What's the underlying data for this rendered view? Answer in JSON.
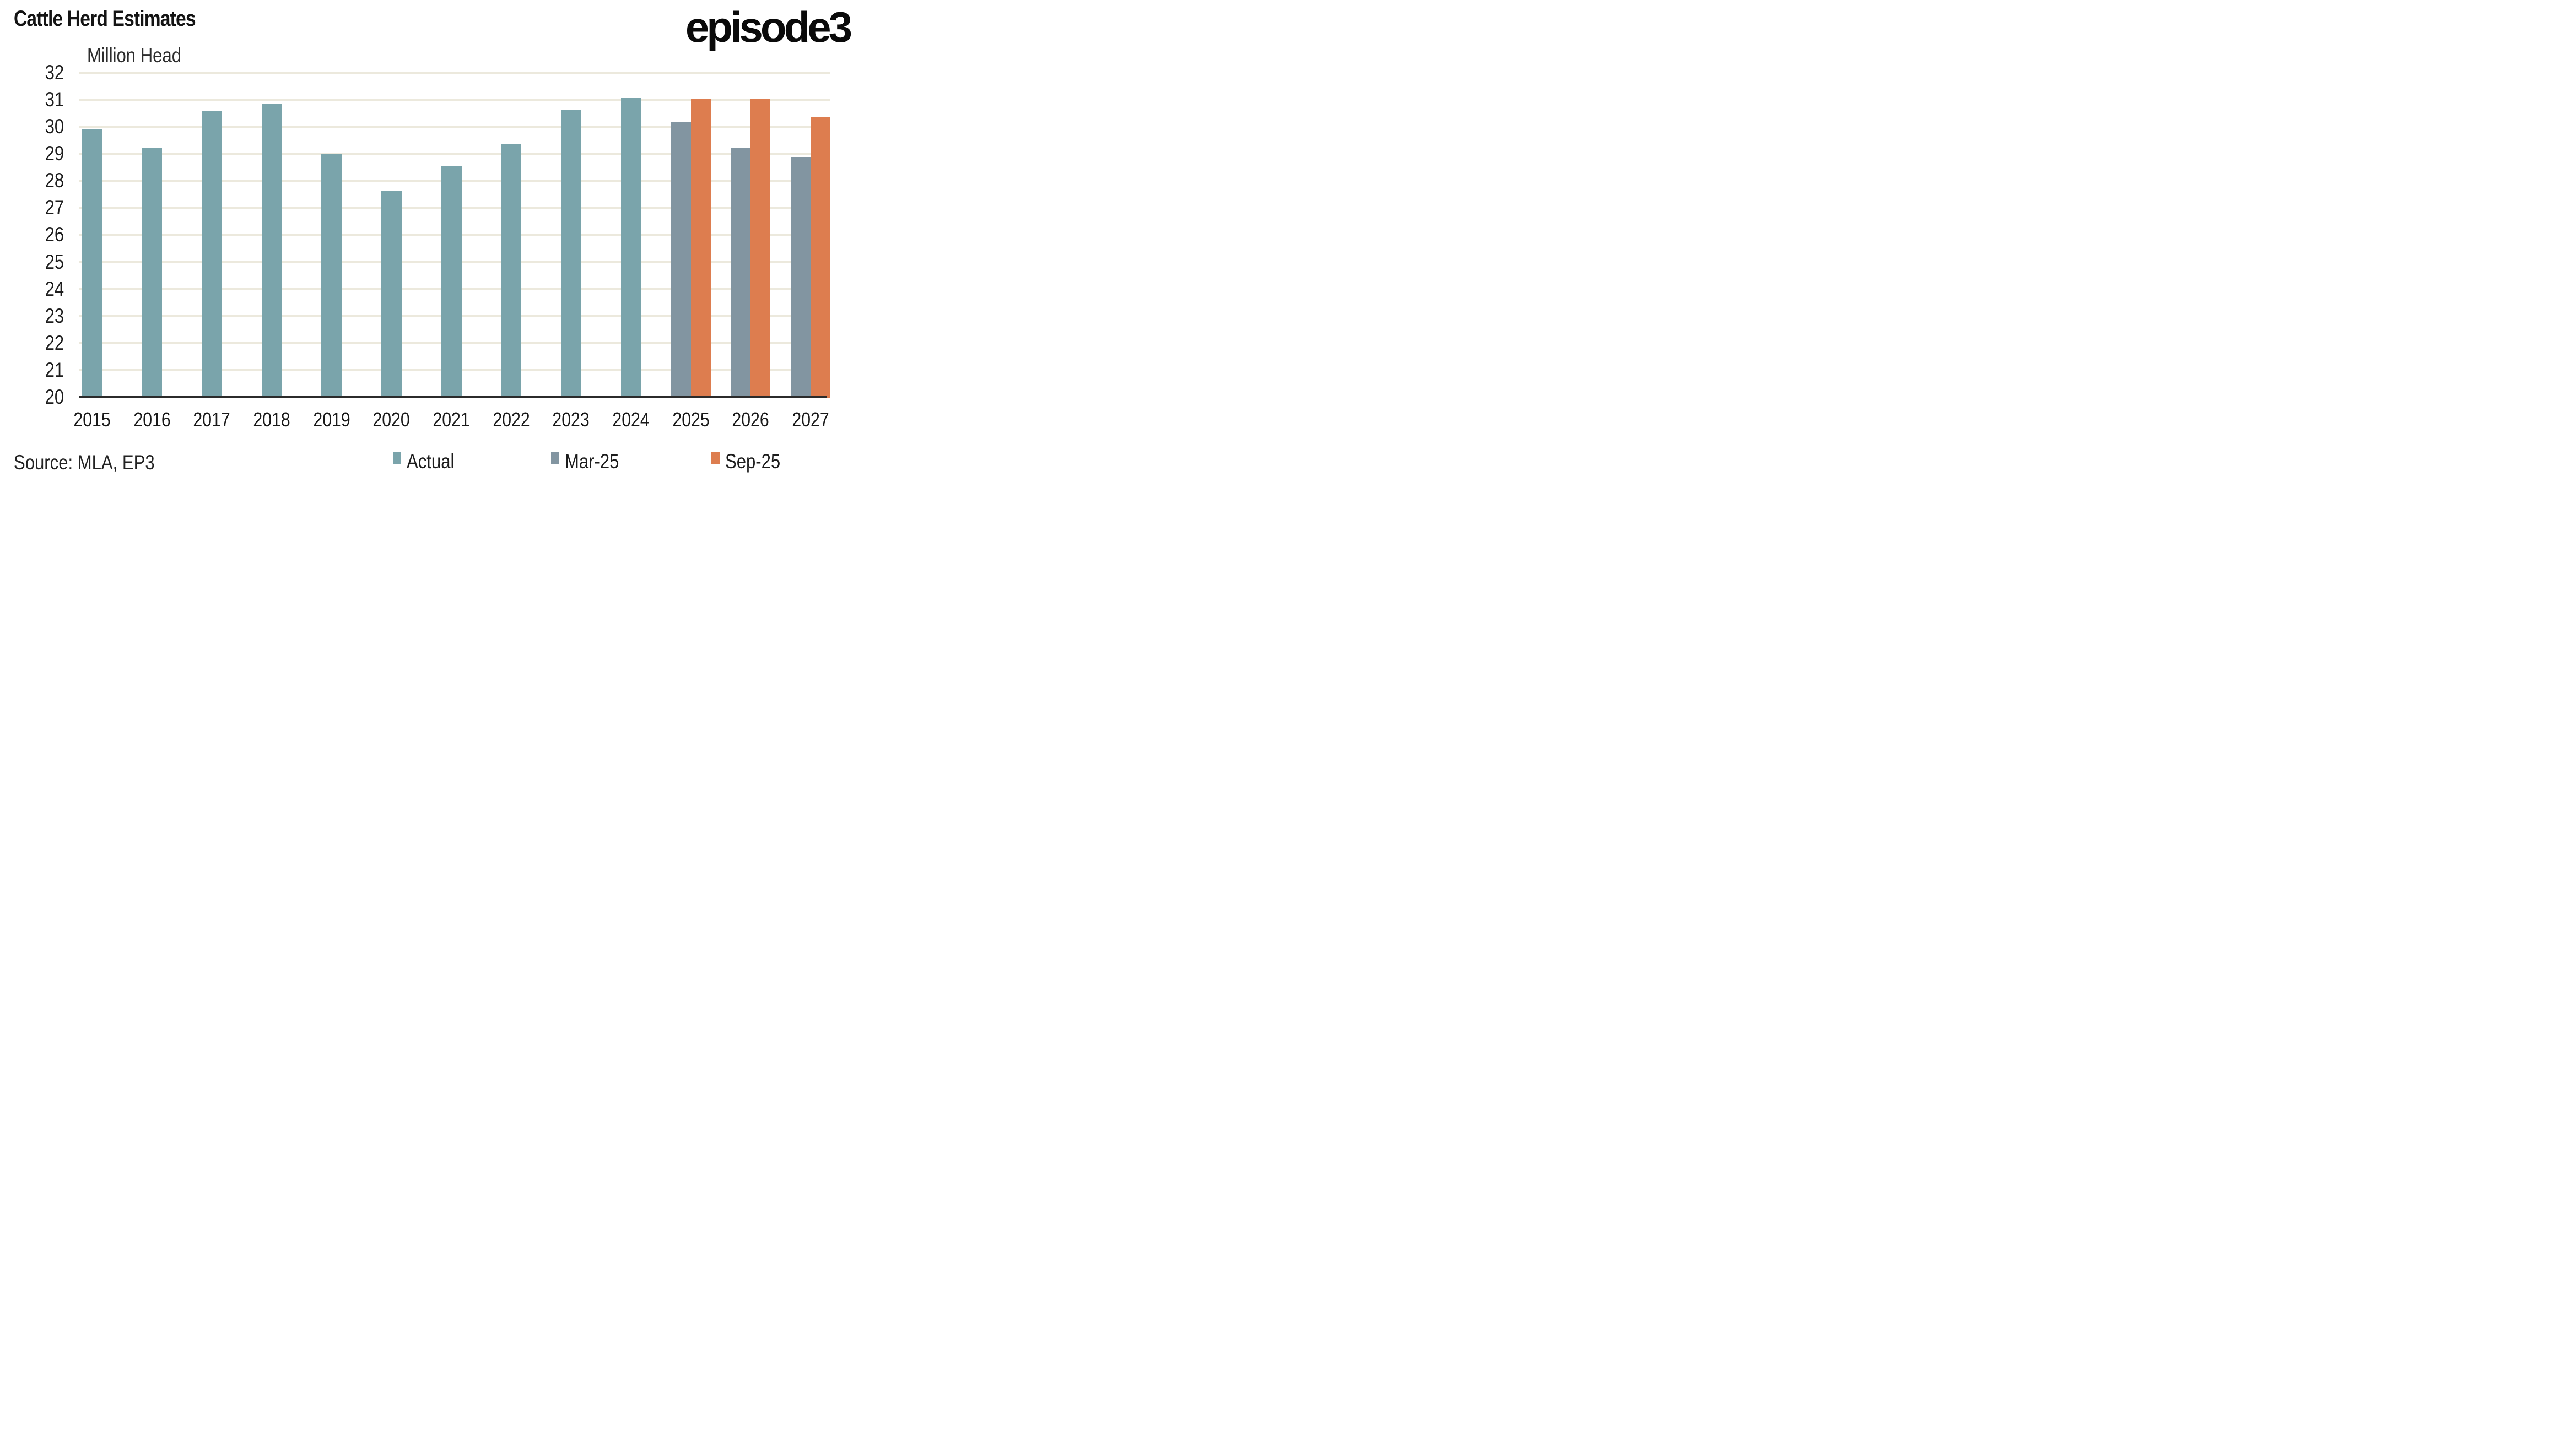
{
  "header": {
    "title": "Cattle Herd Estimates",
    "logo_text": "episode3"
  },
  "y_axis_title": "Million Head",
  "source_note": "Source: MLA, EP3",
  "legend": [
    {
      "label": "Actual",
      "color": "#7AA4AB"
    },
    {
      "label": "Mar-25",
      "color": "#8295A1"
    },
    {
      "label": "Sep-25",
      "color": "#DD7D4F"
    }
  ],
  "colors": {
    "actual": "#7AA4AB",
    "mar25": "#8295A1",
    "sep25": "#DD7D4F",
    "gridline": "#ECE9DD",
    "axis_line": "#2B2B2B",
    "background": "#FFFFFF",
    "text": "#1E1E1E"
  },
  "chart_data": {
    "type": "bar",
    "title": "Cattle Herd Estimates",
    "ylabel": "Million Head",
    "xlabel": "",
    "ylim": [
      20,
      32
    ],
    "ytick_interval": 1,
    "grid": true,
    "legend_position": "bottom",
    "categories": [
      "2015",
      "2016",
      "2017",
      "2018",
      "2019",
      "2020",
      "2021",
      "2022",
      "2023",
      "2024",
      "2025",
      "2026",
      "2027"
    ],
    "series": [
      {
        "name": "Actual",
        "color": "#7AA4AB",
        "values": [
          29.95,
          29.25,
          30.6,
          30.85,
          29.0,
          27.65,
          28.55,
          29.4,
          30.65,
          31.1,
          null,
          null,
          null
        ]
      },
      {
        "name": "Mar-25",
        "color": "#8295A1",
        "values": [
          null,
          null,
          null,
          null,
          null,
          null,
          null,
          null,
          null,
          null,
          30.2,
          29.25,
          28.9
        ]
      },
      {
        "name": "Sep-25",
        "color": "#DD7D4F",
        "values": [
          null,
          null,
          null,
          null,
          null,
          null,
          null,
          null,
          null,
          null,
          31.05,
          31.05,
          30.4
        ]
      }
    ]
  }
}
